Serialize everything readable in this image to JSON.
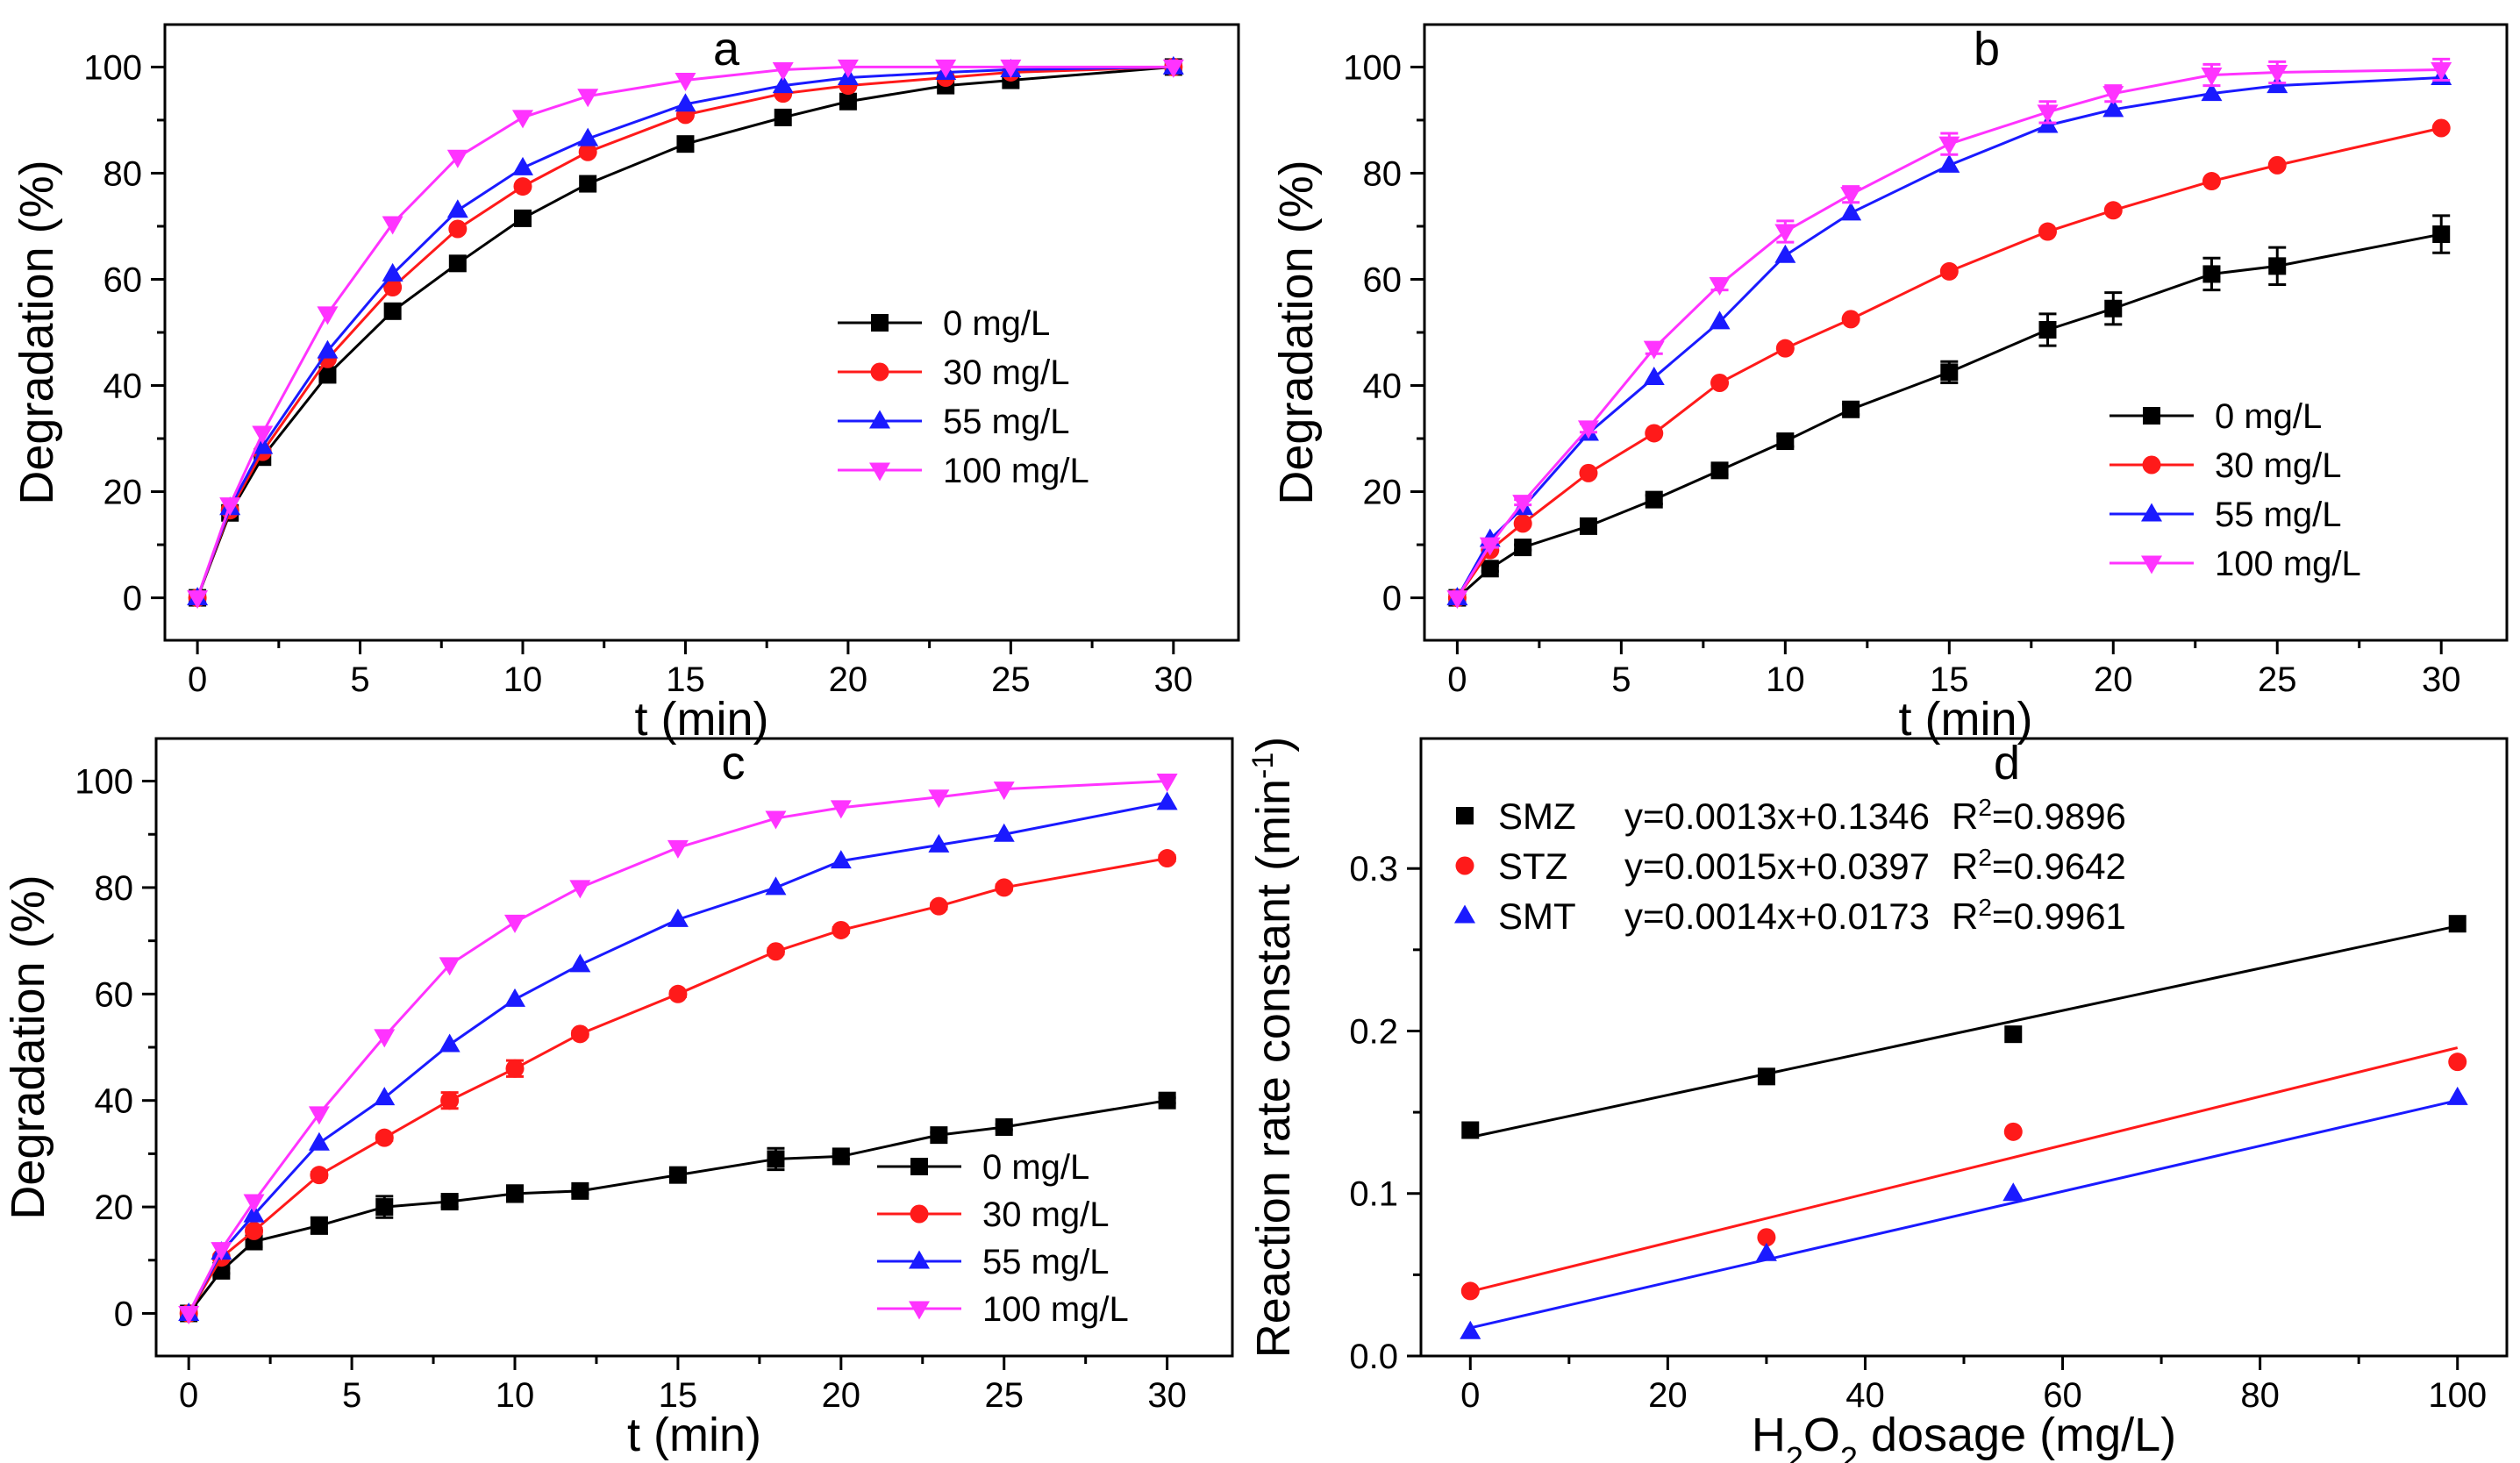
{
  "colors": {
    "black": "#000000",
    "red": "#ff1a1a",
    "blue": "#1a1aff",
    "magenta": "#ff33ff"
  },
  "chart_data": [
    {
      "type": "line",
      "panel": "a",
      "xlabel": "t (min)",
      "ylabel": "Degradation (%)",
      "xlim": [
        -1,
        32
      ],
      "ylim": [
        -8,
        108
      ],
      "xticks": [
        0,
        5,
        10,
        15,
        20,
        25,
        30
      ],
      "yticks": [
        0,
        20,
        40,
        60,
        80,
        100
      ],
      "legend_position": "center-right",
      "x": [
        0,
        1,
        2,
        4,
        6,
        8,
        10,
        12,
        15,
        18,
        20,
        23,
        25,
        30
      ],
      "series": [
        {
          "name": "0 mg/L",
          "color": "#000000",
          "marker": "square",
          "values": [
            0,
            16,
            26.5,
            42,
            54,
            63,
            71.5,
            78,
            85.5,
            90.5,
            93.5,
            96.5,
            97.5,
            100
          ]
        },
        {
          "name": "30 mg/L",
          "color": "#ff1a1a",
          "marker": "circle",
          "values": [
            0,
            16.5,
            27.5,
            45,
            58.5,
            69.5,
            77.5,
            84,
            91,
            95,
            96.5,
            98,
            99,
            100
          ]
        },
        {
          "name": "55 mg/L",
          "color": "#1a1aff",
          "marker": "triangle-up",
          "values": [
            0,
            17,
            28.5,
            46.5,
            61,
            73,
            81,
            86.5,
            93,
            96.5,
            98,
            99,
            99.5,
            100
          ]
        },
        {
          "name": "100 mg/L",
          "color": "#ff33ff",
          "marker": "triangle-down",
          "values": [
            0,
            17.5,
            31,
            53.5,
            70.5,
            83,
            90.5,
            94.5,
            97.5,
            99.5,
            100,
            100,
            100,
            100
          ]
        }
      ]
    },
    {
      "type": "line",
      "panel": "b",
      "xlabel": "t (min)",
      "ylabel": "Degradation (%)",
      "xlim": [
        -1,
        32
      ],
      "ylim": [
        -8,
        108
      ],
      "xticks": [
        0,
        5,
        10,
        15,
        20,
        25,
        30
      ],
      "yticks": [
        0,
        20,
        40,
        60,
        80,
        100
      ],
      "legend_position": "center-right",
      "x": [
        0,
        1,
        2,
        4,
        6,
        8,
        10,
        12,
        15,
        18,
        20,
        23,
        25,
        30
      ],
      "series": [
        {
          "name": "0 mg/L",
          "color": "#000000",
          "marker": "square",
          "values": [
            0,
            5.5,
            9.5,
            13.5,
            18.5,
            24,
            29.5,
            35.5,
            42.5,
            50.5,
            54.5,
            61,
            62.5,
            68.5
          ],
          "errors": [
            0,
            0.5,
            0.5,
            0.8,
            0.8,
            0.8,
            1,
            1,
            2,
            3,
            3,
            3,
            3.5,
            3.5
          ]
        },
        {
          "name": "30 mg/L",
          "color": "#ff1a1a",
          "marker": "circle",
          "values": [
            0,
            9,
            14,
            23.5,
            31,
            40.5,
            47,
            52.5,
            61.5,
            69,
            73,
            78.5,
            81.5,
            88.5
          ]
        },
        {
          "name": "55 mg/L",
          "color": "#1a1aff",
          "marker": "triangle-up",
          "values": [
            0,
            11,
            17,
            31,
            41.5,
            52,
            64.5,
            72.5,
            81.5,
            89,
            92,
            95,
            96.5,
            98
          ]
        },
        {
          "name": "100 mg/L",
          "color": "#ff33ff",
          "marker": "triangle-down",
          "values": [
            0,
            10,
            18,
            32,
            47,
            59,
            69,
            76,
            85.5,
            91.5,
            95,
            98.5,
            99,
            99.5
          ],
          "errors": [
            0,
            0.5,
            0.5,
            0.8,
            1,
            1,
            2,
            1.5,
            2,
            2,
            1.5,
            2,
            2,
            2
          ]
        }
      ]
    },
    {
      "type": "line",
      "panel": "c",
      "xlabel": "t (min)",
      "ylabel": "Degradation (%)",
      "xlim": [
        -1,
        32
      ],
      "ylim": [
        -8,
        108
      ],
      "xticks": [
        0,
        5,
        10,
        15,
        20,
        25,
        30
      ],
      "yticks": [
        0,
        20,
        40,
        60,
        80,
        100
      ],
      "legend_position": "bottom-right",
      "x": [
        0,
        1,
        2,
        4,
        6,
        8,
        10,
        12,
        15,
        18,
        20,
        23,
        25,
        30
      ],
      "series": [
        {
          "name": "0 mg/L",
          "color": "#000000",
          "marker": "square",
          "values": [
            0,
            8,
            13.5,
            16.5,
            20,
            21,
            22.5,
            23,
            26,
            29,
            29.5,
            33.5,
            35,
            40
          ],
          "errors": [
            0,
            0.5,
            1,
            1.5,
            2,
            1,
            1.5,
            0.5,
            0.5,
            2,
            0.5,
            0.5,
            0.5,
            0.5
          ]
        },
        {
          "name": "30 mg/L",
          "color": "#ff1a1a",
          "marker": "circle",
          "values": [
            0,
            10.5,
            15.5,
            26,
            33,
            40,
            46,
            52.5,
            60,
            68,
            72,
            76.5,
            80,
            85.5
          ],
          "errors": [
            0,
            0.5,
            0.5,
            0.5,
            0.5,
            1.5,
            1.5,
            0.5,
            0.5,
            0.5,
            0.5,
            0.5,
            0.5,
            0.5
          ]
        },
        {
          "name": "55 mg/L",
          "color": "#1a1aff",
          "marker": "triangle-up",
          "values": [
            0,
            11.5,
            18.5,
            32,
            40.5,
            50.5,
            59,
            65.5,
            74,
            80,
            85,
            88,
            90,
            96
          ]
        },
        {
          "name": "100 mg/L",
          "color": "#ff33ff",
          "marker": "triangle-down",
          "values": [
            0,
            12,
            21,
            37.5,
            52,
            65.5,
            73.5,
            80,
            87.5,
            93,
            95,
            97,
            98.5,
            100
          ]
        }
      ]
    },
    {
      "type": "scatter",
      "panel": "d",
      "xlabel_main": "H",
      "xlabel_sub1": "2",
      "xlabel_mid": "O",
      "xlabel_sub2": "2",
      "xlabel_rest": " dosage (mg/L)",
      "ylabel_main": "Reaction rate constant (min",
      "ylabel_sup": "-1",
      "ylabel_close": ")",
      "xlim": [
        -5,
        105
      ],
      "ylim": [
        0,
        0.38
      ],
      "xticks": [
        0,
        20,
        40,
        60,
        80,
        100
      ],
      "yticks": [
        0.0,
        0.1,
        0.2,
        0.3
      ],
      "ytick_labels": [
        "0.0",
        "0.1",
        "0.2",
        "0.3"
      ],
      "legend_position": "top-left",
      "x": [
        0,
        30,
        55,
        100
      ],
      "series": [
        {
          "name": "SMZ",
          "color": "#000000",
          "marker": "square",
          "values": [
            0.139,
            0.172,
            0.198,
            0.266
          ],
          "fit": {
            "slope": 0.0013,
            "intercept": 0.1346
          },
          "equation": "y=0.0013x+0.1346",
          "r2_label": "R",
          "r2_sup": "2",
          "r2_value": "=0.9896"
        },
        {
          "name": "STZ",
          "color": "#ff1a1a",
          "marker": "circle",
          "values": [
            0.04,
            0.073,
            0.138,
            0.181
          ],
          "fit": {
            "slope": 0.0015,
            "intercept": 0.0397
          },
          "equation": "y=0.0015x+0.0397",
          "r2_label": "R",
          "r2_sup": "2",
          "r2_value": "=0.9642"
        },
        {
          "name": "SMT",
          "color": "#1a1aff",
          "marker": "triangle-up",
          "values": [
            0.015,
            0.063,
            0.1,
            0.159
          ],
          "fit": {
            "slope": 0.0014,
            "intercept": 0.0173
          },
          "equation": "y=0.0014x+0.0173",
          "r2_label": "R",
          "r2_sup": "2",
          "r2_value": "=0.9961"
        }
      ]
    }
  ]
}
